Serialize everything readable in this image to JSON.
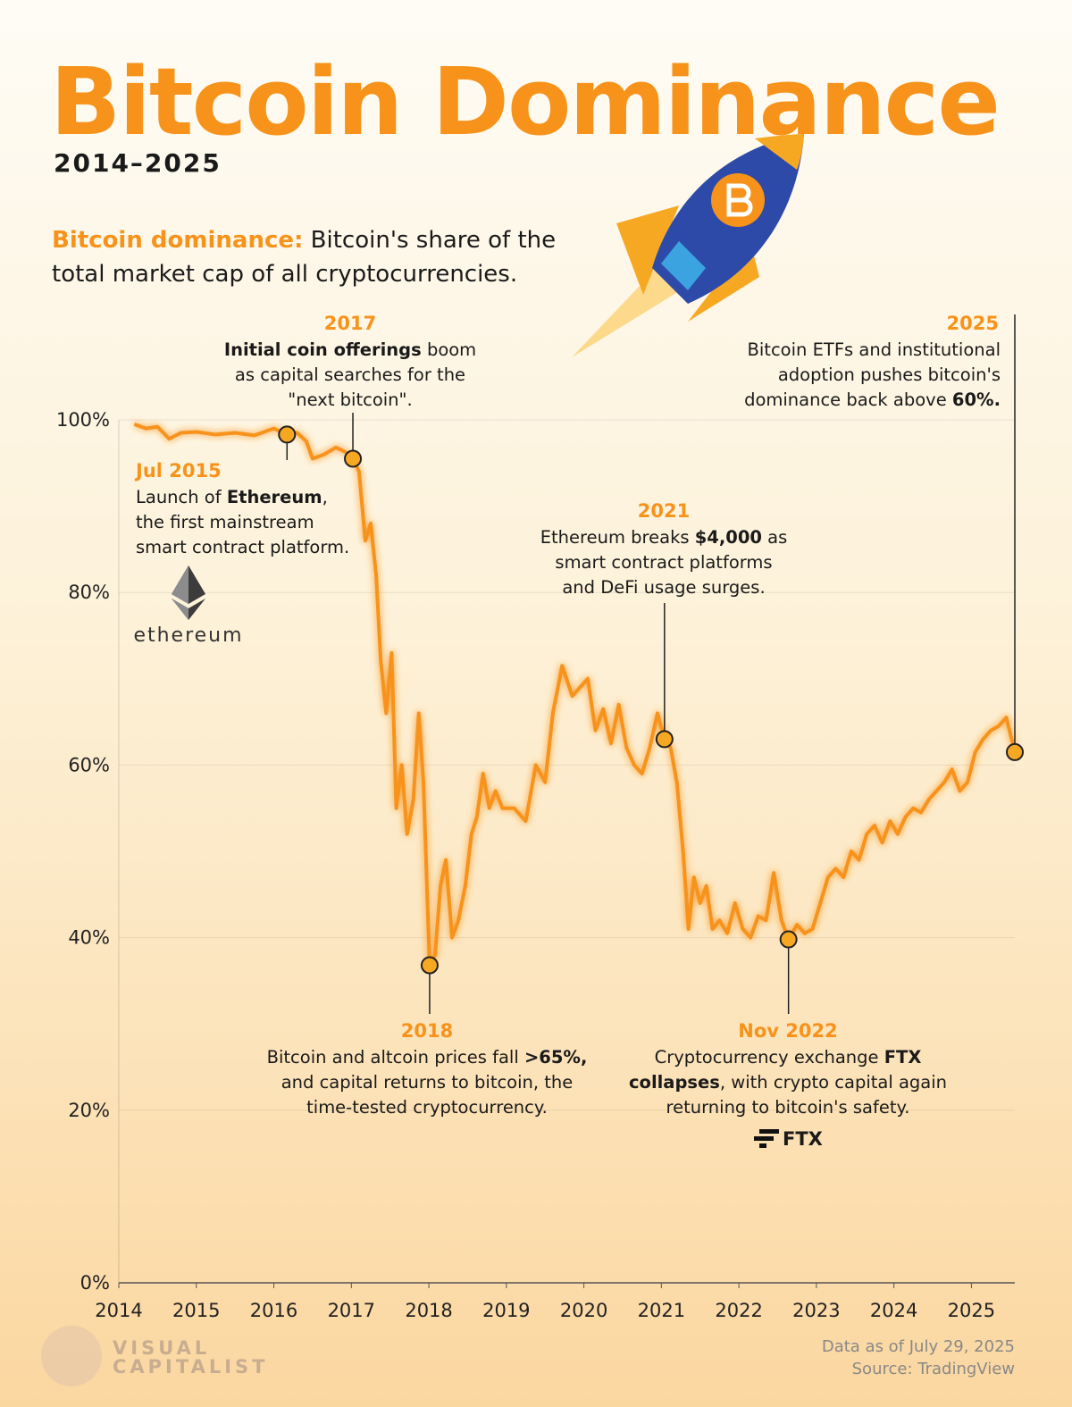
{
  "chart_data": {
    "type": "line",
    "title": "Bitcoin Dominance",
    "subtitle": "2014–2025",
    "description": [
      [
        {
          "text": "Bitcoin dominance:",
          "color": "#f7931a"
        },
        " Bitcoin's share of the"
      ],
      [
        "total market cap of all cryptocurrencies."
      ]
    ],
    "color": "#f7931a",
    "x": [
      2014.2,
      2014.35,
      2014.5,
      2014.65,
      2014.8,
      2015.0,
      2015.25,
      2015.5,
      2015.75,
      2016.0,
      2016.17,
      2016.3,
      2016.42,
      2016.5,
      2016.65,
      2016.8,
      2016.92,
      2017.02,
      2017.1,
      2017.18,
      2017.25,
      2017.32,
      2017.38,
      2017.45,
      2017.52,
      2017.58,
      2017.65,
      2017.72,
      2017.8,
      2017.87,
      2017.93,
      2018.01,
      2018.08,
      2018.15,
      2018.22,
      2018.3,
      2018.38,
      2018.47,
      2018.55,
      2018.62,
      2018.7,
      2018.78,
      2018.86,
      2018.95,
      2019.1,
      2019.25,
      2019.38,
      2019.5,
      2019.6,
      2019.72,
      2019.85,
      2019.95,
      2020.05,
      2020.15,
      2020.25,
      2020.35,
      2020.45,
      2020.55,
      2020.65,
      2020.75,
      2020.85,
      2020.95,
      2021.04,
      2021.12,
      2021.2,
      2021.28,
      2021.35,
      2021.42,
      2021.5,
      2021.58,
      2021.66,
      2021.75,
      2021.85,
      2021.95,
      2022.05,
      2022.15,
      2022.25,
      2022.35,
      2022.45,
      2022.55,
      2022.64,
      2022.75,
      2022.85,
      2022.95,
      2023.05,
      2023.15,
      2023.25,
      2023.35,
      2023.45,
      2023.55,
      2023.65,
      2023.75,
      2023.85,
      2023.95,
      2024.05,
      2024.15,
      2024.25,
      2024.35,
      2024.45,
      2024.55,
      2024.65,
      2024.75,
      2024.85,
      2024.95,
      2025.05,
      2025.15,
      2025.25,
      2025.35,
      2025.45,
      2025.56
    ],
    "values": [
      99.5,
      99,
      99.2,
      97.8,
      98.5,
      98.6,
      98.3,
      98.5,
      98.2,
      99,
      98.3,
      98.5,
      97.5,
      95.5,
      96,
      96.8,
      96.3,
      95.5,
      94,
      86,
      88,
      82,
      72,
      66,
      73,
      55,
      60,
      52,
      56,
      66,
      58,
      36.8,
      38,
      46,
      49,
      40,
      42,
      46,
      52,
      54,
      59,
      55,
      57,
      55,
      55,
      53.5,
      60,
      58,
      66,
      71.5,
      68,
      69,
      70,
      64,
      66.5,
      62.5,
      67,
      62,
      60,
      59,
      62,
      66,
      63,
      62,
      58,
      50,
      41,
      47,
      44,
      46,
      41,
      42,
      40.5,
      44,
      41,
      40,
      42.5,
      42,
      47.5,
      42,
      39.8,
      41.5,
      40.5,
      41,
      44,
      47,
      48,
      47,
      50,
      49,
      52,
      53,
      51,
      53.5,
      52,
      54,
      55,
      54.5,
      56,
      57,
      58,
      59.5,
      57,
      58,
      61.5,
      63,
      64,
      64.5,
      65.5,
      61.5
    ],
    "xlim": [
      2014,
      2025.56
    ],
    "xticks": [
      2014,
      2015,
      2016,
      2017,
      2018,
      2019,
      2020,
      2021,
      2022,
      2023,
      2024,
      2025
    ],
    "ylim": [
      0,
      100
    ],
    "yticks": [
      {
        "value": 0,
        "label": "0%"
      },
      {
        "value": 20,
        "label": "20%"
      },
      {
        "value": 40,
        "label": "40%"
      },
      {
        "value": 60,
        "label": "60%"
      },
      {
        "value": 80,
        "label": "80%"
      },
      {
        "value": 100,
        "label": "100%"
      }
    ],
    "grid": true,
    "annotations": [
      {
        "label": "Jul 2015",
        "x": 2016.17,
        "lines": [
          [
            "Launch of ",
            {
              "text": "Ethereum",
              "bold": true
            },
            ","
          ],
          [
            "the first mainstream"
          ],
          [
            "smart contract platform."
          ]
        ]
      },
      {
        "label": "2017",
        "x": 2017.02,
        "lines": [
          [
            {
              "text": "Initial coin offerings",
              "bold": true
            },
            " boom"
          ],
          [
            "as capital searches for the"
          ],
          [
            "\"next bitcoin\"."
          ]
        ]
      },
      {
        "label": "2021",
        "x": 2021.04,
        "lines": [
          [
            "Ethereum breaks ",
            {
              "text": "$4,000",
              "bold": true
            },
            " as"
          ],
          [
            "smart contract platforms"
          ],
          [
            "and DeFi usage surges."
          ]
        ]
      },
      {
        "label": "2025",
        "x": 2025.56,
        "lines": [
          [
            "Bitcoin ETFs and institutional"
          ],
          [
            "adoption pushes bitcoin's"
          ],
          [
            "dominance back above ",
            {
              "text": "60%.",
              "bold": true
            }
          ]
        ]
      },
      {
        "label": "2018",
        "x": 2018.01,
        "lines": [
          [
            "Bitcoin and altcoin prices fall ",
            {
              "text": ">65%,",
              "bold": true
            }
          ],
          [
            "and capital returns to bitcoin, the"
          ],
          [
            "time-tested cryptocurrency."
          ]
        ]
      },
      {
        "label": "Nov 2022",
        "x": 2022.64,
        "lines": [
          [
            "Cryptocurrency exchange ",
            {
              "text": "FTX",
              "bold": true
            }
          ],
          [
            {
              "text": "collapses",
              "bold": true
            },
            ", with crypto capital again"
          ],
          [
            "returning to bitcoin's safety."
          ]
        ]
      }
    ],
    "logos": {
      "ethereum": "ethereum",
      "ftx": "FTX",
      "brand": [
        "VISUAL",
        "CAPITALIST"
      ]
    },
    "footer": [
      "Data as of July 29, 2025",
      "Source: TradingView"
    ]
  }
}
